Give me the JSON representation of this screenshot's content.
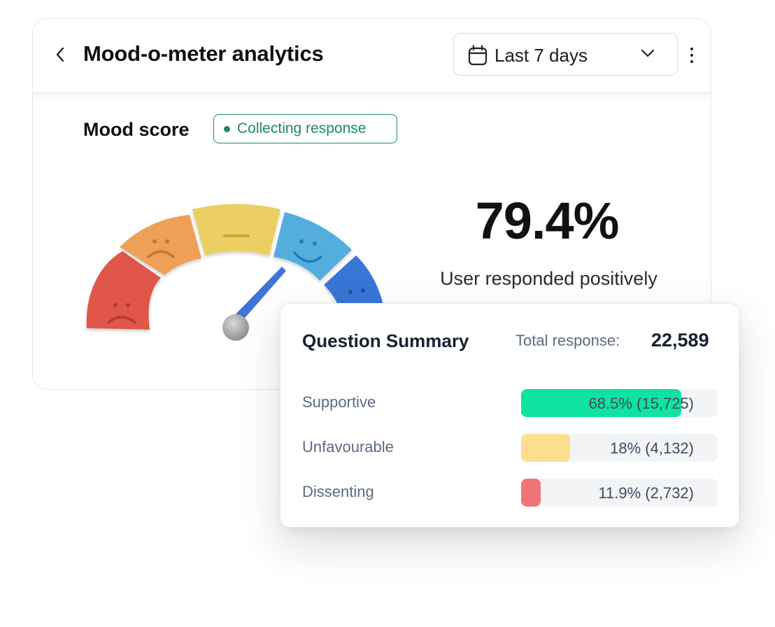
{
  "header": {
    "title": "Mood-o-meter analytics",
    "date_range": "Last 7 days"
  },
  "mood": {
    "label": "Mood score",
    "status_badge": "Collecting response",
    "score": "79.4%",
    "score_caption": "User responded positively",
    "gauge_level": 0.794
  },
  "summary": {
    "title": "Question Summary",
    "total_label": "Total response:",
    "total_value": "22,589",
    "rows": [
      {
        "label": "Supportive",
        "value_text": "68.5% (15,725)",
        "fraction": 0.815,
        "color": "#0ee3a1"
      },
      {
        "label": "Unfavourable",
        "value_text": "18% (4,132)",
        "fraction": 0.25,
        "color": "#fcdf8e"
      },
      {
        "label": "Dissenting",
        "value_text": "11.9% (2,732)",
        "fraction": 0.1,
        "color": "#f07575"
      }
    ]
  },
  "icons": {
    "back": "chevron-left-icon",
    "calendar": "calendar-icon",
    "dropdown": "chevron-down-icon",
    "more": "more-vertical-icon"
  },
  "colors": {
    "badge_green": "#1e8a5a",
    "gauge_red": "#e0564a",
    "gauge_orange": "#ee9f58",
    "gauge_yellow": "#eccf64",
    "gauge_lightblue": "#52aede",
    "gauge_blue": "#3776d6"
  }
}
